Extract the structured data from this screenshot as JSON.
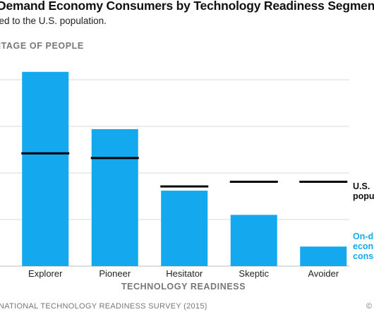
{
  "chart_data": {
    "type": "bar",
    "title": "Demand Economy Consumers by Technology Readiness Segment",
    "subtitle": "red to the U.S. population.",
    "ylabel": "NTAGE OF PEOPLE",
    "xlabel": "TECHNOLOGY READINESS",
    "categories": [
      "Explorer",
      "Pioneer",
      "Hesitator",
      "Skeptic",
      "Avoider"
    ],
    "ylim": [
      0,
      45
    ],
    "grid": true,
    "series": [
      {
        "name": "On-d econ consu",
        "kind": "bar",
        "color": "#14a9ee",
        "values": [
          41.7,
          29.4,
          16.2,
          11.0,
          4.2
        ]
      },
      {
        "name": "U.S. popu",
        "kind": "marker",
        "color": "#000000",
        "values": [
          24.2,
          23.2,
          17.1,
          18.1,
          18.1
        ]
      }
    ],
    "legend_position": "right"
  },
  "legend": {
    "us_line1": "U.S.",
    "us_line2": "popu",
    "on_line1": "On-d",
    "on_line2": "econ",
    "on_line3": "consu"
  },
  "source": "NATIONAL TECHNOLOGY READINESS SURVEY (2015)",
  "copyright": "©",
  "colors": {
    "bar": "#14a9ee",
    "marker": "#000000",
    "axis_text": "#777777",
    "grid": "#d9d9d9"
  }
}
